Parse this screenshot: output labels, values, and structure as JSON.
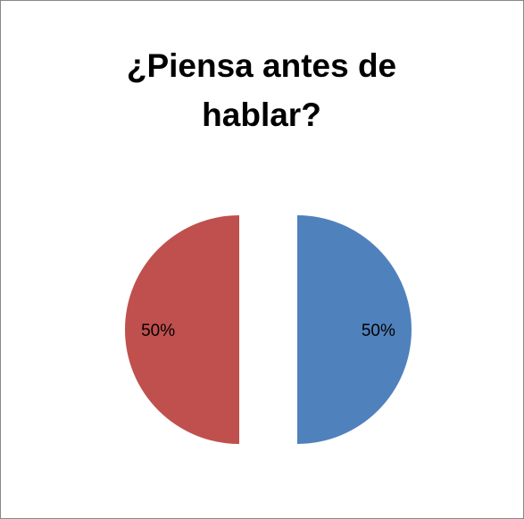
{
  "chart_data": {
    "type": "pie",
    "title": "¿Piensa antes de hablar?",
    "values": [
      50,
      50
    ],
    "value_labels": [
      "50%",
      "50%"
    ],
    "colors": [
      "#4f81bd",
      "#c0504d"
    ],
    "exploded": true
  }
}
